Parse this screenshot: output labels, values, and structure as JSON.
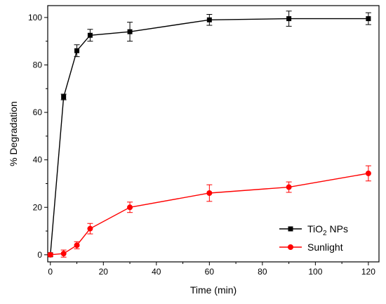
{
  "chart_data": {
    "type": "line",
    "title": "",
    "xlabel": "Time (min)",
    "ylabel": "% Degradation",
    "xlim": [
      -1,
      124
    ],
    "ylim": [
      -3,
      105
    ],
    "xticks": [
      0,
      20,
      40,
      60,
      80,
      100,
      120
    ],
    "yticks": [
      0,
      20,
      40,
      60,
      80,
      100
    ],
    "grid": false,
    "legend_position": "bottom-right",
    "series": [
      {
        "name": "TiO",
        "name_subscript": "2",
        "name_suffix": " NPs",
        "color": "#000000",
        "marker": "square",
        "x": [
          0,
          5,
          10,
          15,
          30,
          60,
          90,
          120
        ],
        "y": [
          0,
          66.5,
          86,
          92.5,
          94,
          99,
          99.5,
          99.5
        ],
        "err": [
          0.7,
          1.2,
          2.5,
          2.5,
          4,
          2.3,
          3.2,
          2.5
        ]
      },
      {
        "name": "Sunlight",
        "color": "#ff0000",
        "marker": "circle",
        "x": [
          0,
          5,
          10,
          15,
          30,
          60,
          90,
          120
        ],
        "y": [
          0,
          0.5,
          4,
          11,
          20,
          26,
          28.5,
          34.3
        ],
        "err": [
          0.7,
          1.5,
          1.5,
          2.2,
          2.2,
          3.5,
          2.2,
          3.2
        ]
      }
    ]
  }
}
